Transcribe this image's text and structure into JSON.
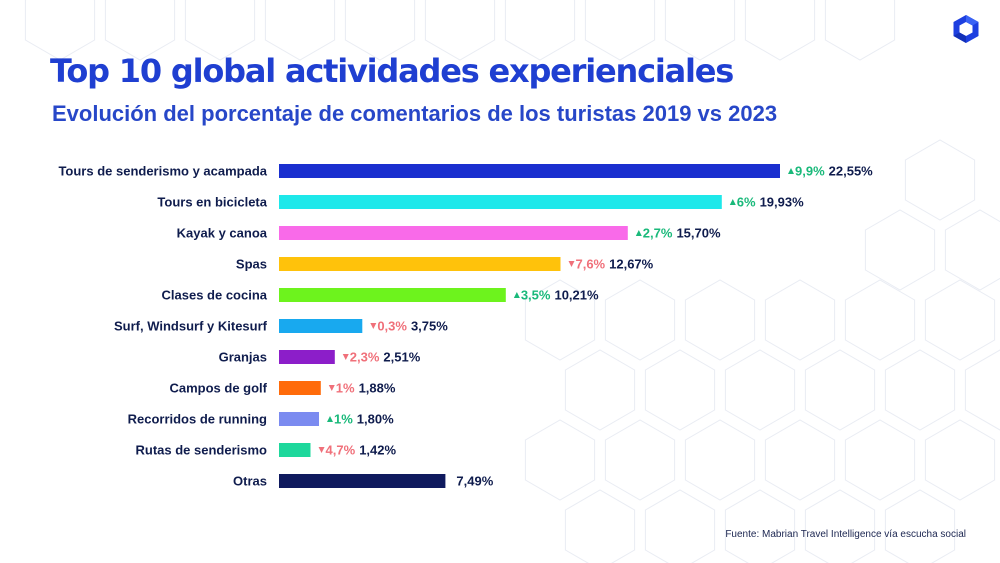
{
  "title": "Top 10 global actividades experienciales",
  "subtitle": "Evolución del porcentaje de comentarios de los turistas 2019 vs 2023",
  "source": "Fuente:  Mabrian Travel Intelligence  vía escucha social",
  "colors": {
    "up": "#19b97a",
    "down": "#f0707a",
    "text": "#0f1c4d",
    "title": "#1f3fd1"
  },
  "chart_data": {
    "type": "bar",
    "orientation": "horizontal",
    "title": "Top 10 global actividades experienciales",
    "subtitle": "Evolución del porcentaje de comentarios de los turistas 2019 vs 2023",
    "xlim": [
      0,
      22.55
    ],
    "grid": false,
    "legend": "none",
    "categories": [
      "Tours de senderismo y acampada",
      "Tours en bicicleta",
      "Kayak y canoa",
      "Spas",
      "Clases de cocina",
      "Surf, Windsurf y Kitesurf",
      "Granjas",
      "Campos de golf",
      "Recorridos de running",
      "Rutas de senderismo",
      "Otras"
    ],
    "values": [
      22.55,
      19.93,
      15.7,
      12.67,
      10.21,
      3.75,
      2.51,
      1.88,
      1.8,
      1.42,
      7.49
    ],
    "value_labels": [
      "22,55%",
      "19,93%",
      "15,70%",
      "12,67%",
      "10,21%",
      "3,75%",
      "2,51%",
      "1,88%",
      "1,80%",
      "1,42%",
      "7,49%"
    ],
    "changes": [
      {
        "dir": "up",
        "label": "9,9%"
      },
      {
        "dir": "up",
        "label": "6%"
      },
      {
        "dir": "up",
        "label": "2,7%"
      },
      {
        "dir": "down",
        "label": "7,6%"
      },
      {
        "dir": "up",
        "label": "3,5%"
      },
      {
        "dir": "down",
        "label": "0,3%"
      },
      {
        "dir": "down",
        "label": "2,3%"
      },
      {
        "dir": "down",
        "label": "1%"
      },
      {
        "dir": "up",
        "label": "1%"
      },
      {
        "dir": "down",
        "label": "4,7%"
      },
      null
    ],
    "bar_colors": [
      "#1a2fcf",
      "#1ee8ea",
      "#f96ae9",
      "#ffc20b",
      "#6df31d",
      "#18a9ef",
      "#8c1ec9",
      "#ff6b0a",
      "#7b8bf0",
      "#1ed89c",
      "#0f1a5e"
    ]
  }
}
